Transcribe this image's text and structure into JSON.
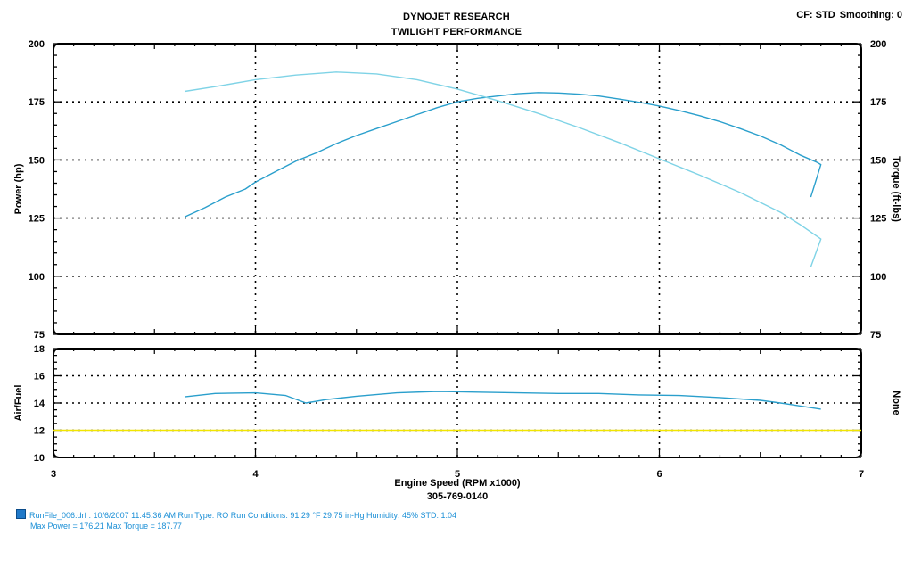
{
  "header": {
    "title_line1": "DYNOJET RESEARCH",
    "title_line2": "TWILIGHT PERFORMANCE",
    "cf": "CF: STD",
    "smoothing": "Smoothing: 0"
  },
  "legend": {
    "run_line": "RunFile_006.drf : 10/6/2007 11:45:36 AM  Run Type: RO  Run Conditions: 91.29 °F  29.75 in-Hg  Humidity: 45%  STD: 1.04",
    "max_line": "Max Power = 176.21  Max Torque = 187.77"
  },
  "colors": {
    "power": "#2a9fcc",
    "torque": "#7fd3e6",
    "afr": "#2a9fcc",
    "afr_ref": "#f2e600",
    "grid": "#000000"
  },
  "chart_data": [
    {
      "type": "line",
      "title": "",
      "xlabel": "Engine Speed (RPM x1000)",
      "xlabel2": "305-769-0140",
      "ylabel": "Power (hp)",
      "y2label": "Torque (ft-lbs)",
      "xlim": [
        3,
        7
      ],
      "ylim": [
        75,
        200
      ],
      "y2lim": [
        75,
        200
      ],
      "xticks": [
        "3",
        "4",
        "5",
        "6",
        "7"
      ],
      "yticks": [
        "75",
        "100",
        "125",
        "150",
        "175",
        "200"
      ],
      "y2ticks": [
        "75",
        "100",
        "125",
        "150",
        "175",
        "200"
      ],
      "grid": true,
      "series": [
        {
          "name": "Power",
          "axis": "left",
          "x": [
            3.65,
            3.75,
            3.85,
            3.95,
            4.0,
            4.1,
            4.2,
            4.3,
            4.4,
            4.5,
            4.6,
            4.7,
            4.8,
            4.9,
            5.0,
            5.1,
            5.2,
            5.3,
            5.4,
            5.5,
            5.6,
            5.7,
            5.8,
            5.9,
            6.0,
            6.1,
            6.2,
            6.3,
            6.4,
            6.5,
            6.6,
            6.7,
            6.78,
            6.8,
            6.75
          ],
          "y": [
            125.5,
            129.5,
            134.0,
            137.5,
            140.5,
            145.0,
            149.5,
            153.0,
            157.0,
            160.5,
            163.5,
            166.5,
            169.5,
            172.5,
            175.0,
            176.5,
            177.5,
            178.5,
            179.0,
            178.8,
            178.3,
            177.5,
            176.2,
            174.8,
            173.2,
            171.2,
            169.0,
            166.5,
            163.5,
            160.3,
            156.5,
            152.0,
            149.0,
            148.0,
            134.0
          ]
        },
        {
          "name": "Torque",
          "axis": "right",
          "x": [
            3.65,
            3.8,
            4.0,
            4.2,
            4.4,
            4.6,
            4.8,
            5.0,
            5.2,
            5.4,
            5.6,
            5.8,
            6.0,
            6.2,
            6.4,
            6.6,
            6.7,
            6.8,
            6.75
          ],
          "y": [
            179.5,
            181.5,
            184.5,
            186.5,
            187.8,
            187.0,
            184.5,
            180.5,
            175.5,
            170.0,
            164.0,
            157.5,
            150.5,
            143.5,
            136.0,
            127.5,
            122.0,
            116.0,
            104.0
          ]
        }
      ]
    },
    {
      "type": "line",
      "title": "",
      "xlabel": "",
      "ylabel": "Air/Fuel",
      "y2label": "None",
      "xlim": [
        3,
        7
      ],
      "ylim": [
        10,
        18
      ],
      "xticks": [
        "3",
        "4",
        "5",
        "6",
        "7"
      ],
      "yticks": [
        "10",
        "12",
        "14",
        "16",
        "18"
      ],
      "grid": true,
      "series": [
        {
          "name": "Air/Fuel",
          "x": [
            3.65,
            3.8,
            4.0,
            4.15,
            4.25,
            4.35,
            4.5,
            4.7,
            4.9,
            5.1,
            5.3,
            5.5,
            5.7,
            5.9,
            6.1,
            6.3,
            6.5,
            6.6,
            6.8
          ],
          "y": [
            14.45,
            14.7,
            14.75,
            14.55,
            14.0,
            14.25,
            14.5,
            14.75,
            14.85,
            14.8,
            14.75,
            14.7,
            14.7,
            14.6,
            14.55,
            14.4,
            14.2,
            14.0,
            13.55
          ]
        },
        {
          "name": "",
          "x": [
            3,
            7
          ],
          "y": [
            12,
            12
          ]
        }
      ]
    }
  ]
}
